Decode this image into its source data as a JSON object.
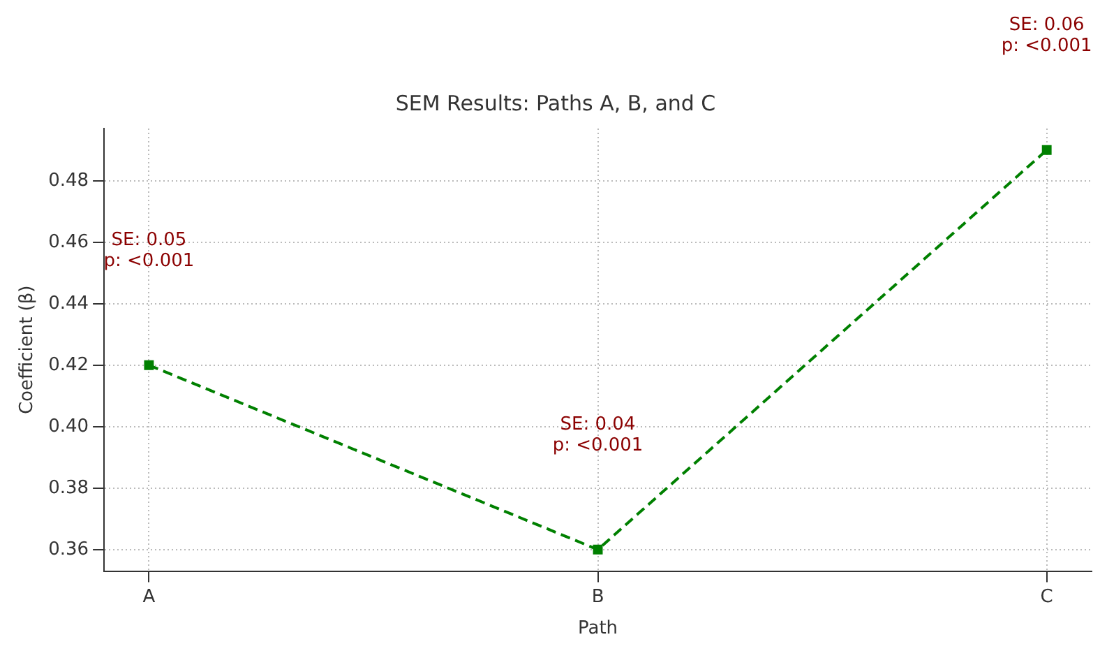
{
  "chart_data": {
    "type": "line",
    "title": "SEM Results: Paths A, B, and C",
    "xlabel": "Path",
    "ylabel": "Coefficient (β)",
    "categories": [
      "A",
      "B",
      "C"
    ],
    "series": [
      {
        "color": "#008000",
        "values": [
          0.42,
          0.36,
          0.49
        ]
      }
    ],
    "ylim": [
      0.353,
      0.497
    ],
    "yticks": [
      {
        "value": 0.36,
        "label": "0.36"
      },
      {
        "value": 0.38,
        "label": "0.38"
      },
      {
        "value": 0.4,
        "label": "0.40"
      },
      {
        "value": 0.42,
        "label": "0.42"
      },
      {
        "value": 0.44,
        "label": "0.44"
      },
      {
        "value": 0.46,
        "label": "0.46"
      },
      {
        "value": 0.48,
        "label": "0.48"
      }
    ],
    "grid": true,
    "legend": false,
    "marker": "square",
    "line_style": "dashed",
    "annotations": [
      "SE: 0.05\np: <0.001",
      "SE: 0.04\np: <0.001",
      "SE: 0.06\np: <0.001"
    ]
  }
}
